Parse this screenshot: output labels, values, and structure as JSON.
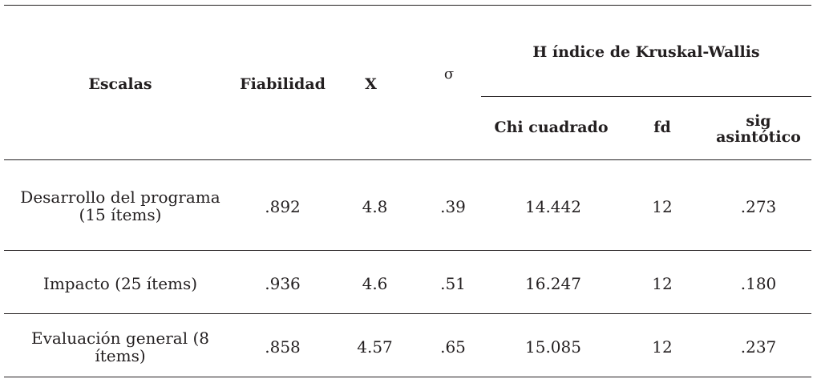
{
  "table": {
    "headers": {
      "escalas": "Escalas",
      "fiabilidad": "Fiabilidad",
      "x": "X",
      "sigma": "σ",
      "kruskal_group": "H índice de Kruskal-Wallis",
      "chi": "Chi cuadrado",
      "fd": "fd",
      "sig_line1": "sig",
      "sig_line2": "asintótico"
    },
    "rows": [
      {
        "escala_line1": "Desarrollo del programa",
        "escala_line2": "(15 ítems)",
        "fiabilidad": ".892",
        "x": "4.8",
        "sigma": ".39",
        "chi": "14.442",
        "fd": "12",
        "sig": ".273"
      },
      {
        "escala_line1": "Impacto (25 ítems)",
        "fiabilidad": ".936",
        "x": "4.6",
        "sigma": ".51",
        "chi": "16.247",
        "fd": "12",
        "sig": ".180"
      },
      {
        "escala_line1": "Evaluación general (8 ítems)",
        "fiabilidad": ".858",
        "x": "4.57",
        "sigma": ".65",
        "chi": "15.085",
        "fd": "12",
        "sig": ".237"
      }
    ]
  }
}
